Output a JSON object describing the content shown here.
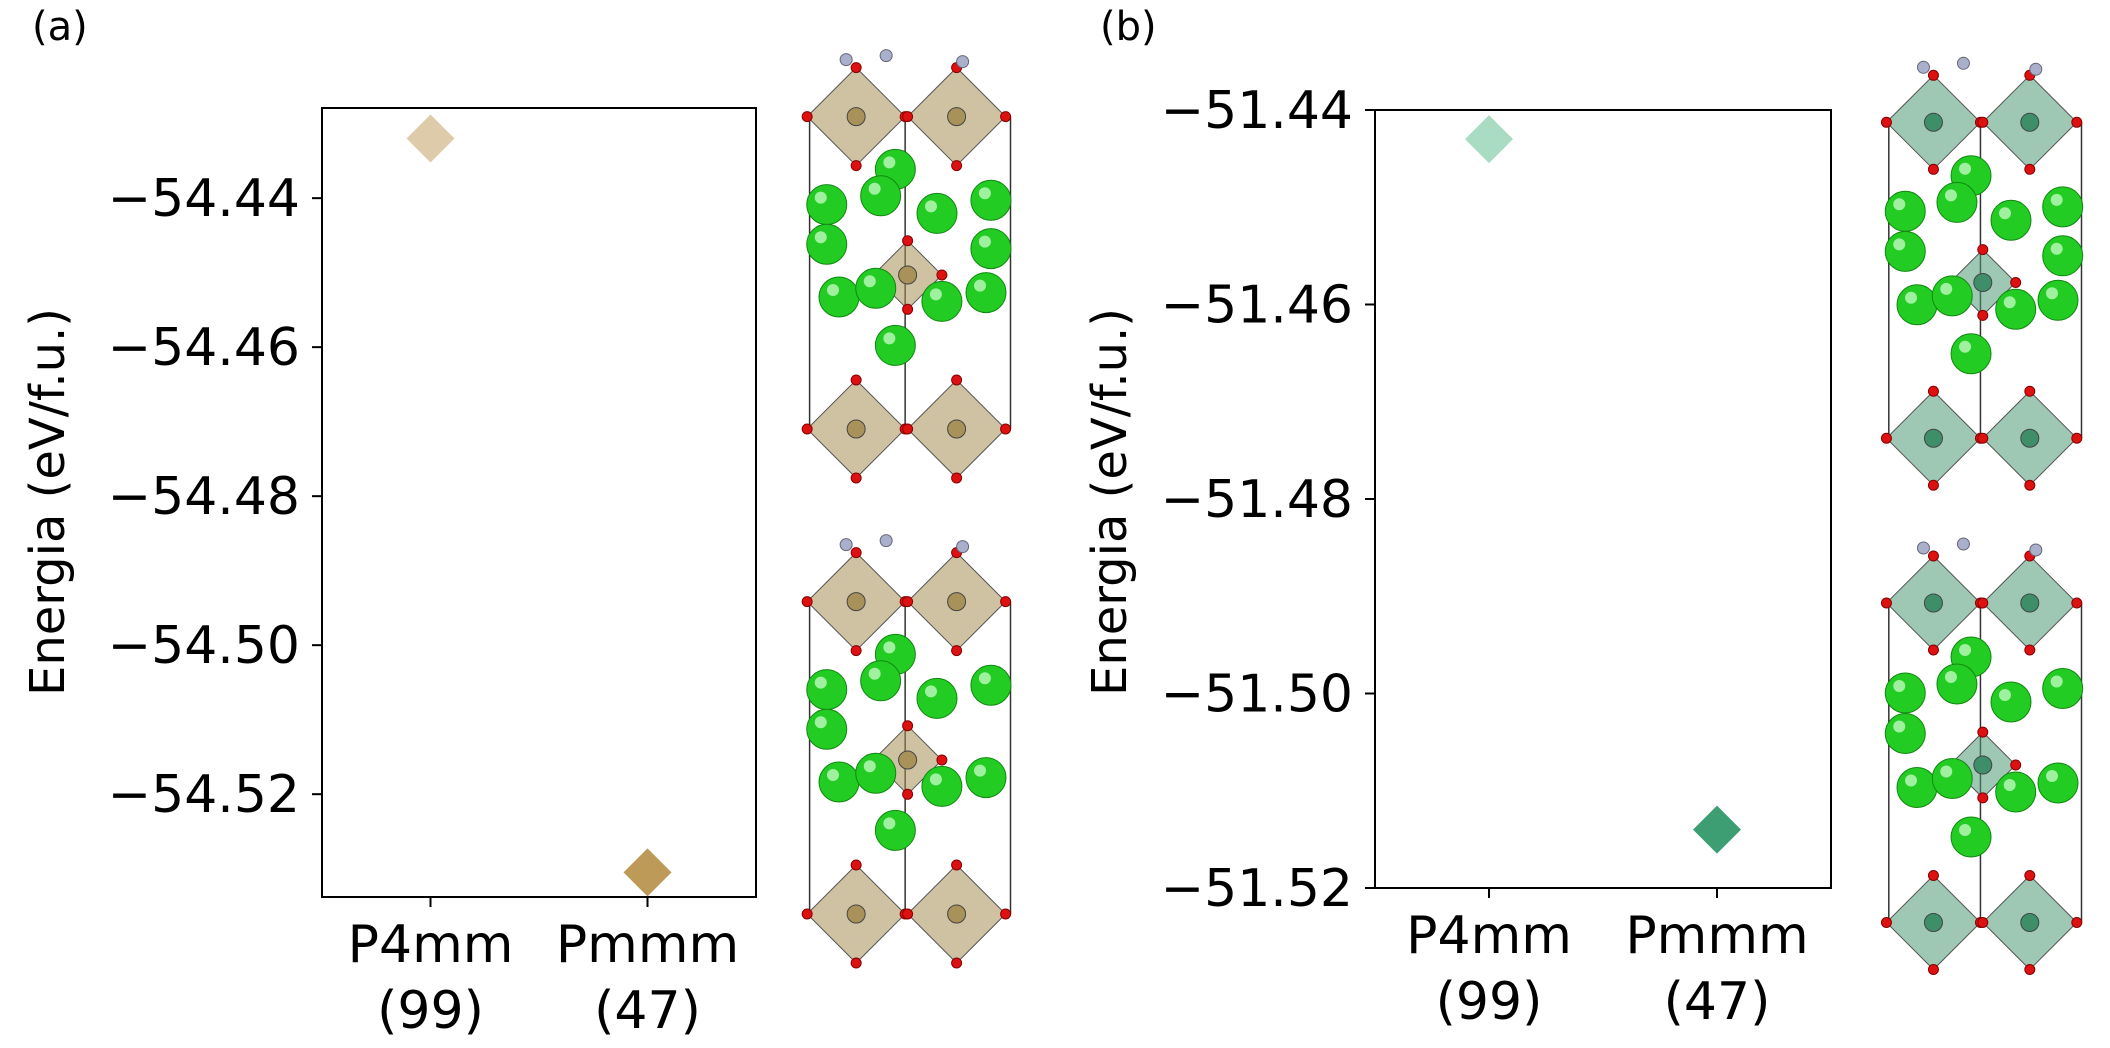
{
  "chart_data": [
    {
      "type": "scatter",
      "panel_label": "(a)",
      "ylabel": "Energia (eV/f.u.)",
      "xlabel": "",
      "categories": [
        "P4mm\n(99)",
        "Pmmm\n(47)"
      ],
      "category_lines": [
        [
          "P4mm",
          "(99)"
        ],
        [
          "Pmmm",
          "(47)"
        ]
      ],
      "yticks": [
        -54.44,
        -54.46,
        -54.48,
        -54.5,
        -54.52
      ],
      "ytick_labels": [
        "−54.44",
        "−54.46",
        "−54.48",
        "−54.50",
        "−54.52"
      ],
      "ylim": [
        -54.5338,
        -54.4279
      ],
      "grid": false,
      "marker": "diamond",
      "points": [
        {
          "category": "P4mm\n(99)",
          "value": -54.432,
          "color": "#ddcbaa"
        },
        {
          "category": "Pmmm\n(47)",
          "value": -54.5305,
          "color": "#bd9a57"
        }
      ],
      "structure_images": [
        {
          "octahedra": "#a88f55",
          "b_cation": "#a8925a",
          "a_cation": "#22cc22",
          "oxygen": "#dd1111",
          "n_site": "#aab0cc"
        },
        {
          "octahedra": "#a88f55",
          "b_cation": "#a8925a",
          "a_cation": "#22cc22",
          "oxygen": "#dd1111",
          "n_site": "#aab0cc"
        }
      ]
    },
    {
      "type": "scatter",
      "panel_label": "(b)",
      "ylabel": "Energia (eV/f.u.)",
      "xlabel": "",
      "categories": [
        "P4mm\n(99)",
        "Pmmm\n(47)"
      ],
      "category_lines": [
        [
          "P4mm",
          "(99)"
        ],
        [
          "Pmmm",
          "(47)"
        ]
      ],
      "yticks": [
        -51.44,
        -51.46,
        -51.48,
        -51.5,
        -51.52
      ],
      "ytick_labels": [
        "−51.44",
        "−51.46",
        "−51.48",
        "−51.50",
        "−51.52"
      ],
      "ylim": [
        -51.52,
        -51.44
      ],
      "grid": false,
      "marker": "diamond",
      "points": [
        {
          "category": "P4mm\n(99)",
          "value": -51.443,
          "color": "#a9dcc3"
        },
        {
          "category": "Pmmm\n(47)",
          "value": -51.514,
          "color": "#3d9e73"
        }
      ],
      "structure_images": [
        {
          "octahedra": "#4e9a76",
          "b_cation": "#3e8e6a",
          "a_cation": "#22cc22",
          "oxygen": "#dd1111",
          "n_site": "#aab0cc"
        },
        {
          "octahedra": "#4e9a76",
          "b_cation": "#3e8e6a",
          "a_cation": "#22cc22",
          "oxygen": "#dd1111",
          "n_site": "#aab0cc"
        }
      ]
    }
  ]
}
